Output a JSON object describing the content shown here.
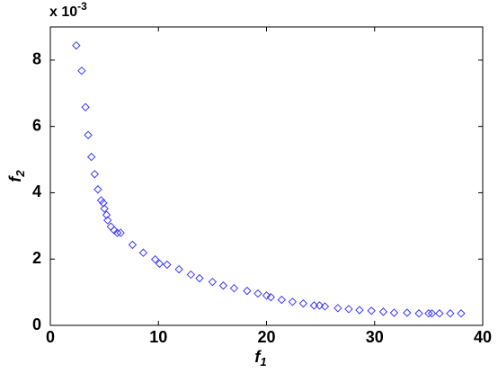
{
  "chart_data": {
    "type": "scatter",
    "xlabel": [
      "f",
      "1"
    ],
    "ylabel": [
      "f",
      "2"
    ],
    "y_multiplier": [
      "x 10",
      "-3"
    ],
    "marker": "diamond",
    "color": "#3b3bff",
    "x": [
      2.4,
      2.9,
      3.25,
      3.5,
      3.8,
      4.1,
      4.4,
      4.7,
      4.9,
      5.0,
      5.2,
      5.3,
      5.6,
      5.9,
      6.2,
      6.5,
      7.6,
      8.6,
      9.7,
      10.1,
      10.8,
      11.9,
      13.0,
      13.8,
      15.0,
      16.0,
      17.0,
      18.2,
      19.2,
      20.0,
      20.4,
      21.4,
      22.4,
      23.4,
      24.4,
      24.9,
      25.4,
      26.6,
      27.6,
      28.6,
      29.7,
      30.8,
      31.8,
      33.0,
      34.1,
      35.0,
      35.3,
      36.0,
      37.0,
      38.0
    ],
    "values": [
      8.44,
      7.68,
      6.58,
      5.74,
      5.08,
      4.56,
      4.1,
      3.77,
      3.69,
      3.52,
      3.33,
      3.17,
      2.98,
      2.87,
      2.79,
      2.79,
      2.43,
      2.19,
      1.99,
      1.86,
      1.83,
      1.69,
      1.53,
      1.42,
      1.31,
      1.2,
      1.12,
      1.04,
      0.96,
      0.9,
      0.85,
      0.77,
      0.71,
      0.66,
      0.6,
      0.6,
      0.57,
      0.52,
      0.49,
      0.46,
      0.44,
      0.41,
      0.38,
      0.38,
      0.36,
      0.36,
      0.36,
      0.36,
      0.36,
      0.36
    ],
    "xlim": [
      0,
      40
    ],
    "xticks": [
      0,
      10,
      20,
      30,
      40
    ],
    "ylim": [
      0,
      9
    ],
    "yticks": [
      0,
      2,
      4,
      6,
      8
    ],
    "grid": false
  }
}
